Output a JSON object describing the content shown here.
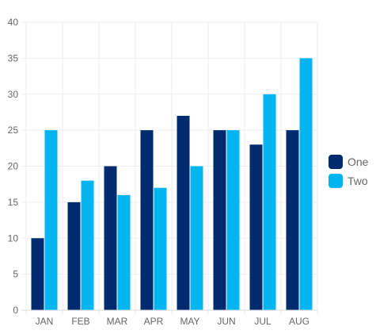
{
  "chart_data": {
    "type": "bar",
    "categories": [
      "JAN",
      "FEB",
      "MAR",
      "APR",
      "MAY",
      "JUN",
      "JUL",
      "AUG"
    ],
    "series": [
      {
        "name": "One",
        "values": [
          10,
          15,
          20,
          25,
          27,
          25,
          23,
          25
        ],
        "color": "#002b6f"
      },
      {
        "name": "Two",
        "values": [
          25,
          18,
          16,
          17,
          20,
          25,
          30,
          35
        ],
        "color": "#00b5f0"
      }
    ],
    "y_ticks": [
      "0",
      "5",
      "10",
      "15",
      "20",
      "25",
      "30",
      "35",
      "40"
    ],
    "ylim": [
      0,
      40
    ],
    "grid": true,
    "legend": "right",
    "colors": {
      "grid": "#eeeeee",
      "axis": "#d9d9d9",
      "tick_text": "#666666"
    }
  }
}
